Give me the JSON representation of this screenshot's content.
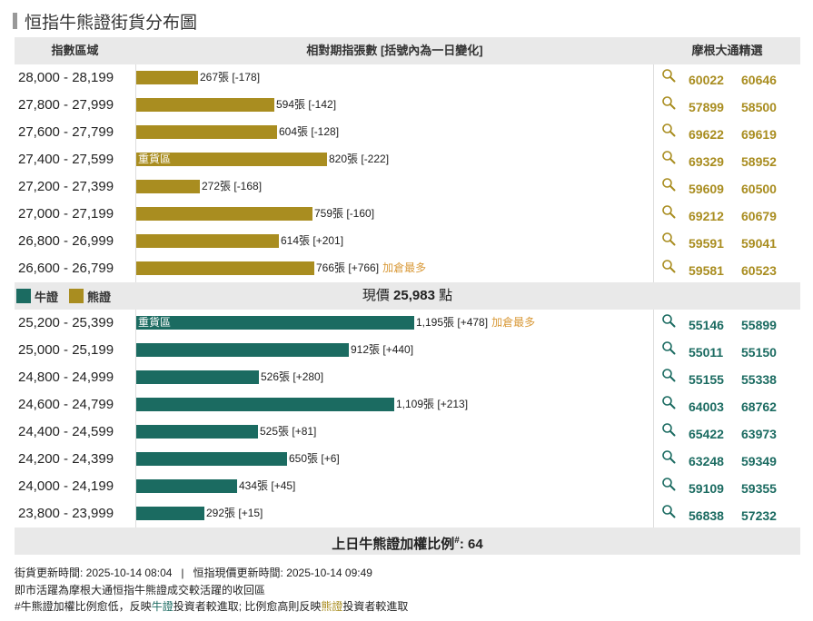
{
  "title": "恒指牛熊證街貨分布圖",
  "headers": {
    "range": "指數區域",
    "bars": "相對期指張數 [括號內為一日變化]",
    "picks": "摩根大通精選"
  },
  "colors": {
    "bear": "#a98d20",
    "bull": "#1b6b61",
    "add_tag": "#d99a3a"
  },
  "heavy_label": "重貨區",
  "add_label": "加倉最多",
  "legend": {
    "bull": "牛證",
    "bear": "熊證"
  },
  "price": {
    "prefix": "現價",
    "value": "25,983",
    "suffix": "點"
  },
  "ratio": {
    "label": "上日牛熊證加權比例",
    "sup": "#",
    "value": "64"
  },
  "notes": {
    "update_line": "街貨更新時間: 2025-10-14 08:04   |   恒指現價更新時間: 2025-10-14 09:49",
    "line2": "即市活躍為摩根大通恒指牛熊證成交較活躍的收回區",
    "line3_a": "#牛熊證加權比例愈低，反映",
    "line3_bull": "牛證",
    "line3_b": "投資者較進取; 比例愈高則反映",
    "line3_bear": "熊證",
    "line3_c": "投資者較進取"
  },
  "chart_data": {
    "type": "bar",
    "orientation": "horizontal",
    "unit": "張",
    "bear_rows": [
      {
        "range": "28,000 - 28,199",
        "value": 267,
        "change": "-178",
        "codes": [
          "60022",
          "60646"
        ]
      },
      {
        "range": "27,800 - 27,999",
        "value": 594,
        "change": "-142",
        "codes": [
          "57899",
          "58500"
        ]
      },
      {
        "range": "27,600 - 27,799",
        "value": 604,
        "change": "-128",
        "codes": [
          "69622",
          "69619"
        ]
      },
      {
        "range": "27,400 - 27,599",
        "value": 820,
        "change": "-222",
        "codes": [
          "69329",
          "58952"
        ],
        "heavy": true
      },
      {
        "range": "27,200 - 27,399",
        "value": 272,
        "change": "-168",
        "codes": [
          "59609",
          "60500"
        ]
      },
      {
        "range": "27,000 - 27,199",
        "value": 759,
        "change": "-160",
        "codes": [
          "69212",
          "60679"
        ]
      },
      {
        "range": "26,800 - 26,999",
        "value": 614,
        "change": "+201",
        "codes": [
          "59591",
          "59041"
        ]
      },
      {
        "range": "26,600 - 26,799",
        "value": 766,
        "change": "+766",
        "codes": [
          "59581",
          "60523"
        ],
        "most_added": true
      }
    ],
    "bull_rows": [
      {
        "range": "25,200 - 25,399",
        "value": 1195,
        "change": "+478",
        "codes": [
          "55146",
          "55899"
        ],
        "heavy": true,
        "most_added": true
      },
      {
        "range": "25,000 - 25,199",
        "value": 912,
        "change": "+440",
        "codes": [
          "55011",
          "55150"
        ]
      },
      {
        "range": "24,800 - 24,999",
        "value": 526,
        "change": "+280",
        "codes": [
          "55155",
          "55338"
        ]
      },
      {
        "range": "24,600 - 24,799",
        "value": 1109,
        "change": "+213",
        "codes": [
          "64003",
          "68762"
        ]
      },
      {
        "range": "24,400 - 24,599",
        "value": 525,
        "change": "+81",
        "codes": [
          "65422",
          "63973"
        ]
      },
      {
        "range": "24,200 - 24,399",
        "value": 650,
        "change": "+6",
        "codes": [
          "63248",
          "59349"
        ]
      },
      {
        "range": "24,000 - 24,199",
        "value": 434,
        "change": "+45",
        "codes": [
          "59109",
          "59355"
        ]
      },
      {
        "range": "23,800 - 23,999",
        "value": 292,
        "change": "+15",
        "codes": [
          "56838",
          "57232"
        ]
      }
    ]
  }
}
